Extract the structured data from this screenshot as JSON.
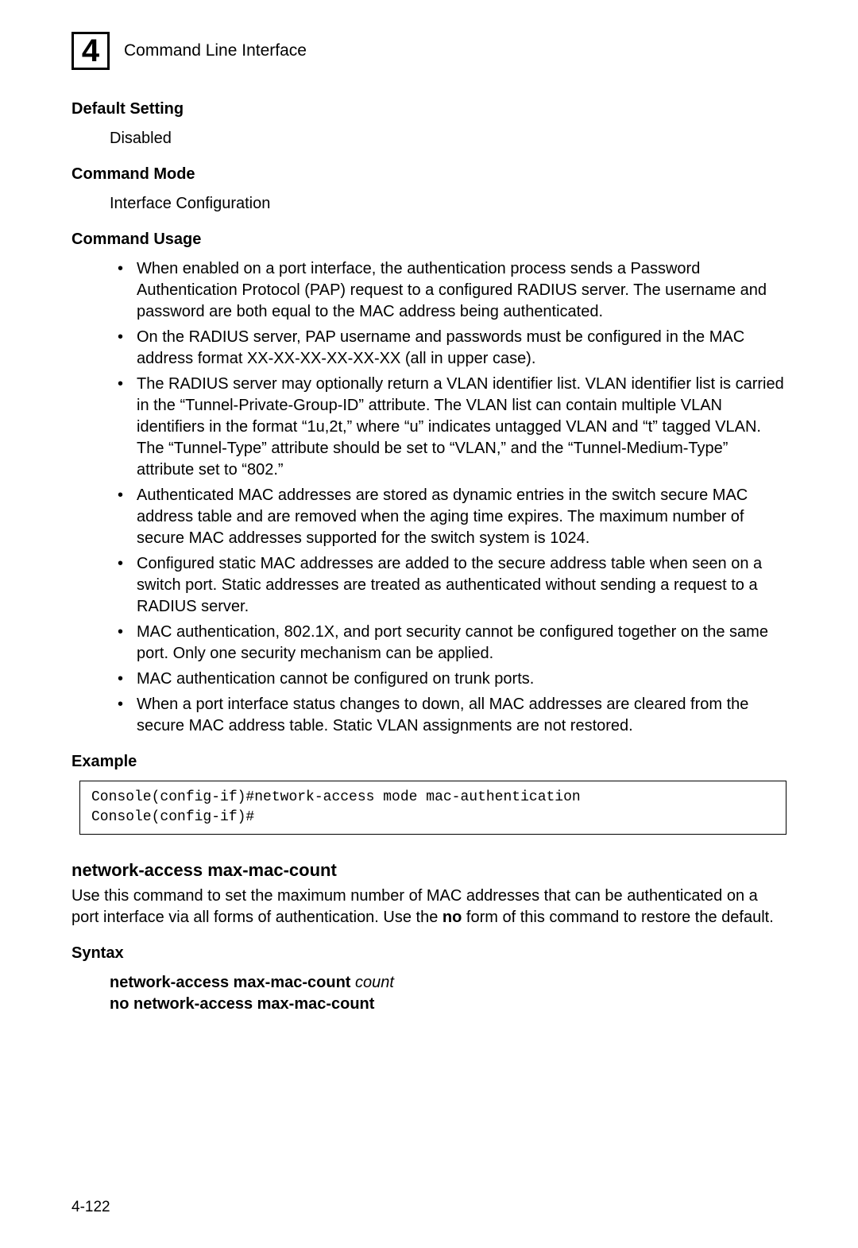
{
  "header": {
    "chapter_number": "4",
    "title": "Command Line Interface"
  },
  "sections": {
    "default_setting": {
      "heading": "Default Setting",
      "content": "Disabled"
    },
    "command_mode": {
      "heading": "Command Mode",
      "content": "Interface Configuration"
    },
    "command_usage": {
      "heading": "Command Usage",
      "items": [
        "When enabled on a port interface, the authentication process sends a Password Authentication Protocol (PAP) request to a configured RADIUS server. The username and password are both equal to the MAC address being authenticated.",
        "On the RADIUS server, PAP username and passwords must be configured in the MAC address format XX-XX-XX-XX-XX-XX (all in upper case).",
        "The RADIUS server may optionally return a VLAN identifier list. VLAN identifier list is carried in the “Tunnel-Private-Group-ID” attribute. The VLAN list can contain multiple VLAN identifiers in the format “1u,2t,” where “u” indicates untagged VLAN and “t” tagged VLAN. The “Tunnel-Type” attribute should be set to “VLAN,” and the “Tunnel-Medium-Type” attribute set to “802.”",
        "Authenticated MAC addresses are stored as dynamic entries in the switch secure MAC address table and are removed when the aging time expires. The maximum number of secure MAC addresses supported for the switch system is 1024.",
        "Configured static MAC addresses are added to the secure address table when seen on a switch port. Static addresses are treated as authenticated without sending a request to a RADIUS server.",
        "MAC authentication, 802.1X, and port security cannot be configured together on the same port. Only one security mechanism can be applied.",
        "MAC authentication cannot be configured on trunk ports.",
        "When a port interface status changes to down, all MAC addresses are cleared from the secure MAC address table. Static VLAN assignments are not restored."
      ]
    },
    "example": {
      "heading": "Example",
      "code": "Console(config-if)#network-access mode mac-authentication\nConsole(config-if)#"
    },
    "command2": {
      "title": "network-access max-mac-count",
      "desc_pre": "Use this command to set the maximum number of MAC addresses that can be authenticated on a port interface via all forms of authentication. Use the ",
      "desc_bold": "no",
      "desc_post": " form of this command to restore the default."
    },
    "syntax": {
      "heading": "Syntax",
      "line1_bold": "network-access max-mac-count",
      "line1_italic": " count",
      "line2_bold": "no network-access max-mac-count"
    }
  },
  "page_number": "4-122"
}
